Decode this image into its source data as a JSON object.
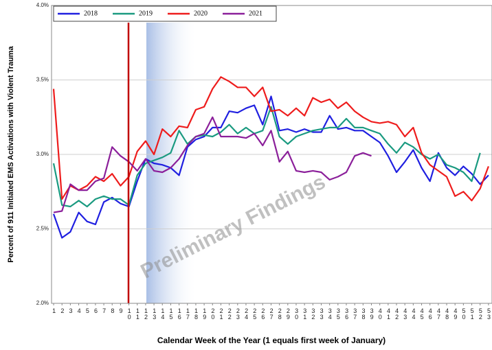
{
  "chart_data": {
    "type": "line",
    "ylabel": "Percent of 911 Initiated EMS Activations with  Violent Trauma",
    "xlabel": "Calendar Week of the Year (1 equals first week of January)",
    "annotation": "Preliminary Findings",
    "x": [
      1,
      2,
      3,
      4,
      5,
      6,
      7,
      8,
      9,
      10,
      11,
      12,
      13,
      14,
      15,
      16,
      17,
      18,
      19,
      20,
      21,
      22,
      23,
      24,
      25,
      26,
      27,
      28,
      29,
      30,
      31,
      32,
      33,
      34,
      35,
      36,
      37,
      38,
      39,
      40,
      41,
      42,
      43,
      44,
      45,
      46,
      47,
      48,
      49,
      50,
      51,
      52,
      53
    ],
    "xlim": [
      0.75,
      53.42
    ],
    "ylim": [
      2.0,
      4.0
    ],
    "yticks": [
      {
        "value": 2.0,
        "label": "2.0%"
      },
      {
        "value": 2.5,
        "label": "2.5%"
      },
      {
        "value": 3.0,
        "label": "3.0%"
      },
      {
        "value": 3.5,
        "label": "3.5%"
      },
      {
        "value": 4.0,
        "label": "4.0%"
      }
    ],
    "grid": true,
    "legend": "top-left",
    "series": [
      {
        "name": "2018",
        "color": "#1f1fe0",
        "values": [
          2.6,
          2.44,
          2.48,
          2.61,
          2.55,
          2.53,
          2.68,
          2.71,
          2.67,
          2.65,
          2.82,
          2.97,
          2.94,
          2.93,
          2.91,
          2.86,
          3.05,
          3.1,
          3.12,
          3.18,
          3.18,
          3.29,
          3.28,
          3.31,
          3.33,
          3.2,
          3.39,
          3.16,
          3.17,
          3.15,
          3.17,
          3.15,
          3.15,
          3.26,
          3.17,
          3.18,
          3.16,
          3.16,
          3.12,
          3.08,
          2.99,
          2.88,
          2.95,
          3.03,
          2.91,
          2.82,
          3.01,
          2.91,
          2.86,
          2.92,
          2.87,
          2.8,
          2.86
        ]
      },
      {
        "name": "2019",
        "color": "#1a9a80",
        "values": [
          2.94,
          2.66,
          2.65,
          2.69,
          2.65,
          2.7,
          2.72,
          2.7,
          2.7,
          2.66,
          2.86,
          2.94,
          2.96,
          2.98,
          3.01,
          3.16,
          3.07,
          3.12,
          3.13,
          3.12,
          3.15,
          3.2,
          3.14,
          3.18,
          3.14,
          3.16,
          3.32,
          3.12,
          3.07,
          3.12,
          3.14,
          3.16,
          3.17,
          3.18,
          3.18,
          3.24,
          3.18,
          3.18,
          3.16,
          3.14,
          3.07,
          3.01,
          3.08,
          3.05,
          3.0,
          2.97,
          3.0,
          2.93,
          2.91,
          2.88,
          2.82,
          3.01,
          null
        ]
      },
      {
        "name": "2020",
        "color": "#ee1c1c",
        "values": [
          3.44,
          2.7,
          2.79,
          2.76,
          2.79,
          2.85,
          2.82,
          2.87,
          2.79,
          2.85,
          3.02,
          3.09,
          3.0,
          3.17,
          3.12,
          3.19,
          3.18,
          3.3,
          3.32,
          3.44,
          3.52,
          3.49,
          3.45,
          3.45,
          3.39,
          3.45,
          3.29,
          3.3,
          3.26,
          3.31,
          3.26,
          3.38,
          3.35,
          3.37,
          3.31,
          3.35,
          3.29,
          3.25,
          3.22,
          3.21,
          3.22,
          3.2,
          3.12,
          3.18,
          3.01,
          2.93,
          2.89,
          2.85,
          2.72,
          2.75,
          2.69,
          2.77,
          2.92
        ]
      },
      {
        "name": "2021",
        "color": "#8b1f9a",
        "values": [
          2.61,
          2.62,
          2.8,
          2.76,
          2.76,
          2.82,
          2.84,
          3.05,
          2.99,
          2.95,
          2.89,
          2.97,
          2.89,
          2.88,
          2.91,
          2.97,
          3.06,
          3.12,
          3.14,
          3.25,
          3.12,
          3.12,
          3.12,
          3.11,
          3.14,
          3.06,
          3.16,
          2.95,
          3.02,
          2.89,
          2.88,
          2.89,
          2.88,
          2.83,
          2.85,
          2.88,
          2.99,
          3.01,
          2.99,
          null,
          null,
          null,
          null,
          null,
          null,
          null,
          null,
          null,
          null,
          null,
          null,
          null,
          null
        ]
      }
    ]
  }
}
